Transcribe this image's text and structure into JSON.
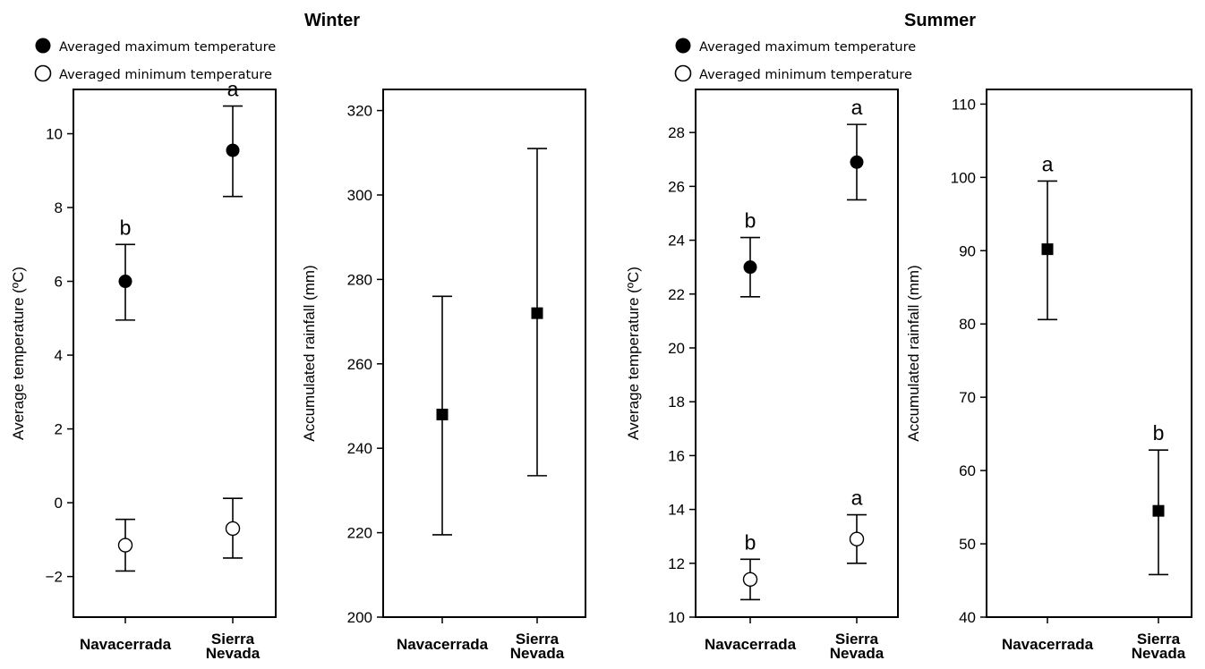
{
  "titles": {
    "winter": "Winter",
    "summer": "Summer"
  },
  "legend": {
    "max": "Averaged maximum temperature",
    "min": "Averaged minimum temperature"
  },
  "chart_data": [
    {
      "id": "winter-temp",
      "type": "scatter",
      "ylabel": "Average temperature (ºC)",
      "ylim": [
        -3.1,
        11.2
      ],
      "yticks": [
        -2,
        0,
        2,
        4,
        6,
        8,
        10
      ],
      "tick_labels": [
        "−2",
        "0",
        "2",
        "4",
        "6",
        "8",
        "10"
      ],
      "categories": [
        [
          "Navacerrada"
        ],
        [
          "Sierra",
          "Nevada"
        ]
      ],
      "series": [
        {
          "name": "Averaged maximum temperature",
          "marker": "filled-circle",
          "values": [
            6.0,
            9.55
          ],
          "err_low": [
            4.95,
            8.3
          ],
          "err_high": [
            7.0,
            10.75
          ],
          "letters": [
            "b",
            "a"
          ]
        },
        {
          "name": "Averaged minimum temperature",
          "marker": "open-circle",
          "values": [
            -1.15,
            -0.7
          ],
          "err_low": [
            -1.85,
            -1.5
          ],
          "err_high": [
            -0.45,
            0.12
          ],
          "letters": [
            "",
            ""
          ]
        }
      ]
    },
    {
      "id": "winter-rain",
      "type": "scatter",
      "ylabel": "Accumulated rainfall (mm)",
      "ylim": [
        200,
        325
      ],
      "yticks": [
        200,
        220,
        240,
        260,
        280,
        300,
        320
      ],
      "tick_labels": [
        "200",
        "220",
        "240",
        "260",
        "280",
        "300",
        "320"
      ],
      "categories": [
        [
          "Navacerrada"
        ],
        [
          "Sierra",
          "Nevada"
        ]
      ],
      "series": [
        {
          "name": "",
          "marker": "filled-square",
          "values": [
            248,
            272
          ],
          "err_low": [
            219.5,
            233.5
          ],
          "err_high": [
            276,
            311
          ],
          "letters": [
            "",
            ""
          ]
        }
      ]
    },
    {
      "id": "summer-temp",
      "type": "scatter",
      "ylabel": "Average temperature (ºC)",
      "ylim": [
        10,
        29.6
      ],
      "yticks": [
        10,
        12,
        14,
        16,
        18,
        20,
        22,
        24,
        26,
        28
      ],
      "tick_labels": [
        "10",
        "12",
        "14",
        "16",
        "18",
        "20",
        "22",
        "24",
        "26",
        "28"
      ],
      "categories": [
        [
          "Navacerrada"
        ],
        [
          "Sierra",
          "Nevada"
        ]
      ],
      "series": [
        {
          "name": "Averaged maximum temperature",
          "marker": "filled-circle",
          "values": [
            23.0,
            26.9
          ],
          "err_low": [
            21.9,
            25.5
          ],
          "err_high": [
            24.1,
            28.3
          ],
          "letters": [
            "b",
            "a"
          ]
        },
        {
          "name": "Averaged minimum temperature",
          "marker": "open-circle",
          "values": [
            11.4,
            12.9
          ],
          "err_low": [
            10.65,
            12.0
          ],
          "err_high": [
            12.15,
            13.8
          ],
          "letters": [
            "b",
            "a"
          ]
        }
      ]
    },
    {
      "id": "summer-rain",
      "type": "scatter",
      "ylabel": "Accumulated rainfall (mm)",
      "ylim": [
        40,
        112
      ],
      "yticks": [
        40,
        50,
        60,
        70,
        80,
        90,
        100,
        110
      ],
      "tick_labels": [
        "40",
        "50",
        "60",
        "70",
        "80",
        "90",
        "100",
        "110"
      ],
      "categories": [
        [
          "Navacerrada"
        ],
        [
          "Sierra",
          "Nevada"
        ]
      ],
      "series": [
        {
          "name": "",
          "marker": "filled-square",
          "values": [
            90.2,
            54.5
          ],
          "err_low": [
            80.6,
            45.8
          ],
          "err_high": [
            99.5,
            62.8
          ],
          "letters": [
            "a",
            "b"
          ]
        }
      ]
    }
  ]
}
